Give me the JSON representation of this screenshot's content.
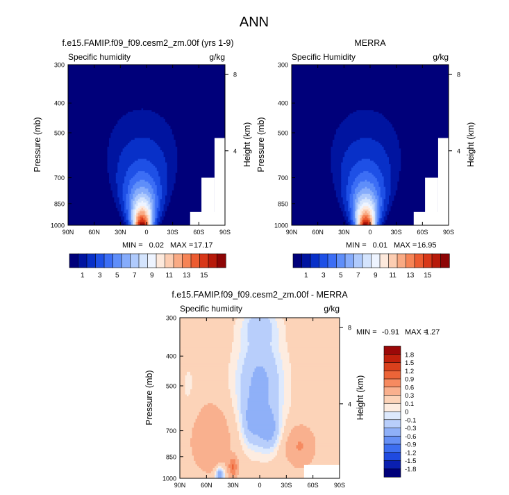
{
  "figure": {
    "title": "ANN"
  },
  "colors": {
    "full_field": [
      "#00007a",
      "#0014a0",
      "#0830c8",
      "#1e50e6",
      "#3c6ef5",
      "#5f8ef9",
      "#86acfb",
      "#afcafc",
      "#d4e4fd",
      "#eef4ff",
      "#fde9dc",
      "#fccdb2",
      "#f9aa84",
      "#f68456",
      "#ec5b30",
      "#d83718",
      "#b71a0a",
      "#8d0505"
    ],
    "diff_field": [
      "#00007a",
      "#0a1fb0",
      "#1f4ae0",
      "#3d6ef0",
      "#6690f5",
      "#8fb0f8",
      "#b8cefb",
      "#dde9fd",
      "#fdece0",
      "#fcd3b8",
      "#f9b08e",
      "#f68a60",
      "#ec6438",
      "#d9401c",
      "#c0200c",
      "#9b0808"
    ]
  },
  "chart_data": [
    {
      "type": "heatmap",
      "title": "f.e15.FAMIP.f09_f09.cesm2_zm.00f (yrs 1-9)",
      "variable_label": "Specific humidity",
      "units": "g/kg",
      "ylabel": "Pressure (mb)",
      "y2label": "Height (km)",
      "x_ticks": [
        "90N",
        "60N",
        "30N",
        "0",
        "30S",
        "60S",
        "90S"
      ],
      "y_ticks": [
        "300",
        "400",
        "500",
        "700",
        "850",
        "1000"
      ],
      "y2_ticks": [
        "8",
        "4"
      ],
      "stats": {
        "min_label": "MIN =",
        "min_value": "0.02",
        "max_label": "MAX =",
        "max_value": "17.17"
      },
      "peak_value": 17.17,
      "peak_lat": 5,
      "colorbar_levels": [
        "1",
        "3",
        "5",
        "7",
        "9",
        "11",
        "13",
        "15"
      ]
    },
    {
      "type": "heatmap",
      "title": "MERRA",
      "variable_label": "Specific Humidity",
      "units": "g/kg",
      "ylabel": "Pressure (mb)",
      "y2label": "Height (km)",
      "x_ticks": [
        "90N",
        "60N",
        "30N",
        "0",
        "30S",
        "60S",
        "90S"
      ],
      "y_ticks": [
        "300",
        "400",
        "500",
        "700",
        "850",
        "1000"
      ],
      "y2_ticks": [
        "8",
        "4"
      ],
      "stats": {
        "min_label": "MIN =",
        "min_value": "0.01",
        "max_label": "MAX =",
        "max_value": "16.95"
      },
      "peak_value": 16.95,
      "peak_lat": 5,
      "colorbar_levels": [
        "1",
        "3",
        "5",
        "7",
        "9",
        "11",
        "13",
        "15"
      ]
    },
    {
      "type": "heatmap",
      "title": "f.e15.FAMIP.f09_f09.cesm2_zm.00f - MERRA",
      "variable_label": "Specific humidity",
      "units": "g/kg",
      "ylabel": "Pressure (mb)",
      "y2label": "Height (km)",
      "x_ticks": [
        "90N",
        "60N",
        "30N",
        "0",
        "30S",
        "60S",
        "90S"
      ],
      "y_ticks": [
        "300",
        "400",
        "500",
        "700",
        "850",
        "1000"
      ],
      "y2_ticks": [
        "8",
        "4"
      ],
      "stats": {
        "min_label": "MIN =",
        "min_value": "-0.91",
        "max_label": "MAX =",
        "max_value": "1.27"
      },
      "colorbar_levels": [
        "1.8",
        "1.5",
        "1.2",
        "0.9",
        "0.6",
        "0.3",
        "0.1",
        "0",
        "-0.1",
        "-0.3",
        "-0.6",
        "-0.9",
        "-1.2",
        "-1.5",
        "-1.8"
      ]
    }
  ]
}
